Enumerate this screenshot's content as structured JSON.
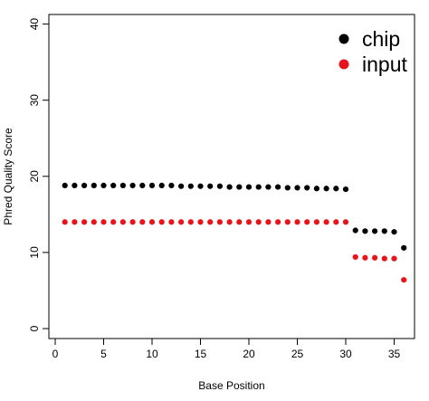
{
  "chart_data": {
    "type": "scatter",
    "title": "",
    "xlabel": "Base Position",
    "ylabel": "Phred Quality Score",
    "xlim": [
      0,
      36.5
    ],
    "ylim": [
      0,
      40
    ],
    "xticks": [
      0,
      5,
      10,
      15,
      20,
      25,
      30,
      35
    ],
    "yticks": [
      0,
      10,
      20,
      30,
      40
    ],
    "grid": false,
    "legend": {
      "position": "top-right"
    },
    "series": [
      {
        "name": "chip",
        "color": "#000000",
        "x": [
          1,
          2,
          3,
          4,
          5,
          6,
          7,
          8,
          9,
          10,
          11,
          12,
          13,
          14,
          15,
          16,
          17,
          18,
          19,
          20,
          21,
          22,
          23,
          24,
          25,
          26,
          27,
          28,
          29,
          30,
          31,
          32,
          33,
          34,
          35,
          36
        ],
        "values": [
          18.8,
          18.8,
          18.8,
          18.8,
          18.8,
          18.8,
          18.8,
          18.8,
          18.8,
          18.8,
          18.8,
          18.8,
          18.7,
          18.7,
          18.7,
          18.7,
          18.7,
          18.6,
          18.6,
          18.6,
          18.6,
          18.6,
          18.6,
          18.5,
          18.5,
          18.5,
          18.4,
          18.4,
          18.4,
          18.3,
          12.9,
          12.8,
          12.8,
          12.8,
          12.7,
          10.6
        ]
      },
      {
        "name": "input",
        "color": "#e8141c",
        "x": [
          1,
          2,
          3,
          4,
          5,
          6,
          7,
          8,
          9,
          10,
          11,
          12,
          13,
          14,
          15,
          16,
          17,
          18,
          19,
          20,
          21,
          22,
          23,
          24,
          25,
          26,
          27,
          28,
          29,
          30,
          31,
          32,
          33,
          34,
          35,
          36
        ],
        "values": [
          14.0,
          14.0,
          14.0,
          14.0,
          14.0,
          14.0,
          14.0,
          14.0,
          14.0,
          14.0,
          14.0,
          14.0,
          14.0,
          14.0,
          14.0,
          14.0,
          14.0,
          14.0,
          14.0,
          14.0,
          14.0,
          14.0,
          14.0,
          14.0,
          14.0,
          14.0,
          14.0,
          14.0,
          14.0,
          14.0,
          9.4,
          9.3,
          9.3,
          9.2,
          9.2,
          6.4
        ]
      }
    ]
  }
}
